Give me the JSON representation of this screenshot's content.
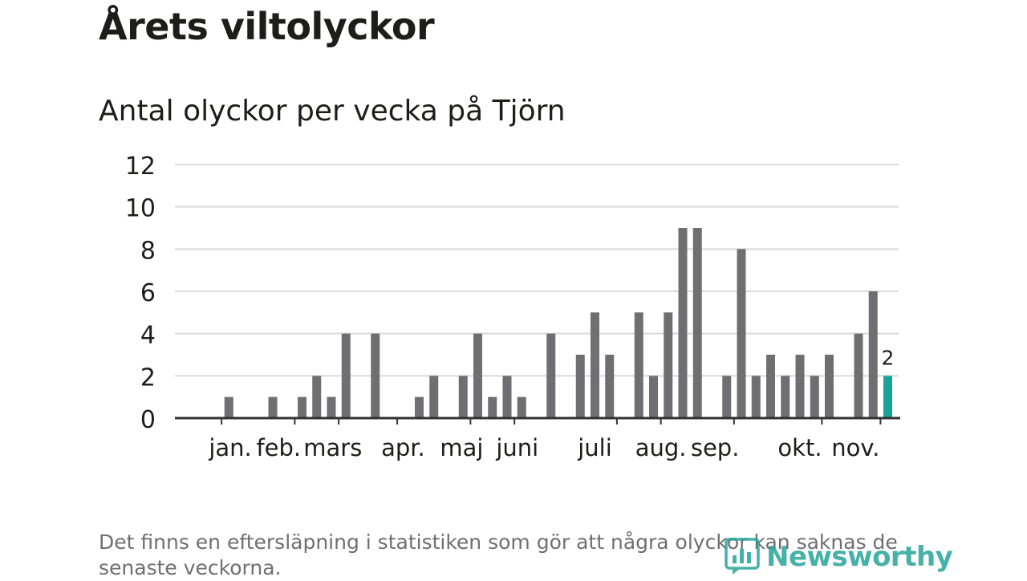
{
  "headline": "Årets viltolyckor",
  "subtitle": "Antal olyckor per vecka på Tjörn",
  "note": "Det finns en eftersläpning i statistiken som gör att några olyckor kan saknas de senaste veckorna.",
  "brand": {
    "name": "Newsworthy"
  },
  "colors": {
    "bar": "#6f6e72",
    "highlight": "#1aa39a",
    "grid": "#d9d9d9",
    "axis": "#333333",
    "text": "#1d1d1b"
  },
  "chart_data": {
    "type": "bar",
    "title": "Antal olyckor per vecka på Tjörn",
    "xlabel": "",
    "ylabel": "",
    "ylim": [
      0,
      12
    ],
    "yticks": [
      0,
      2,
      4,
      6,
      8,
      10,
      12
    ],
    "grid": true,
    "x_weeks": [
      1,
      2,
      3,
      4,
      5,
      6,
      7,
      8,
      9,
      10,
      11,
      12,
      13,
      14,
      15,
      16,
      17,
      18,
      19,
      20,
      21,
      22,
      23,
      24,
      25,
      26,
      27,
      28,
      29,
      30,
      31,
      32,
      33,
      34,
      35,
      36,
      37,
      38,
      39,
      40,
      41,
      42,
      43,
      44,
      45,
      46,
      47,
      48,
      49
    ],
    "values": [
      0,
      1,
      0,
      0,
      1,
      0,
      1,
      2,
      1,
      4,
      0,
      4,
      0,
      0,
      1,
      2,
      0,
      2,
      4,
      1,
      2,
      1,
      0,
      4,
      0,
      3,
      5,
      3,
      0,
      5,
      2,
      5,
      9,
      9,
      0,
      2,
      8,
      2,
      3,
      2,
      3,
      2,
      3,
      0,
      4,
      6,
      2,
      0,
      0
    ],
    "highlight_index": 46,
    "highlight_label": "2",
    "month_labels": [
      "jan.",
      "feb.",
      "mars",
      "apr.",
      "maj",
      "juni",
      "juli",
      "aug.",
      "sep.",
      "okt.",
      "nov."
    ],
    "month_label_weeks": [
      2.1,
      5.4,
      9.1,
      13.9,
      17.9,
      21.7,
      27.0,
      31.5,
      35.2,
      41.0,
      44.8
    ],
    "month_tick_weeks": [
      1.5,
      6.5,
      9.5,
      13.5,
      18.5,
      21.5,
      28.5,
      31.5,
      36.5,
      42.5,
      46.5
    ]
  }
}
